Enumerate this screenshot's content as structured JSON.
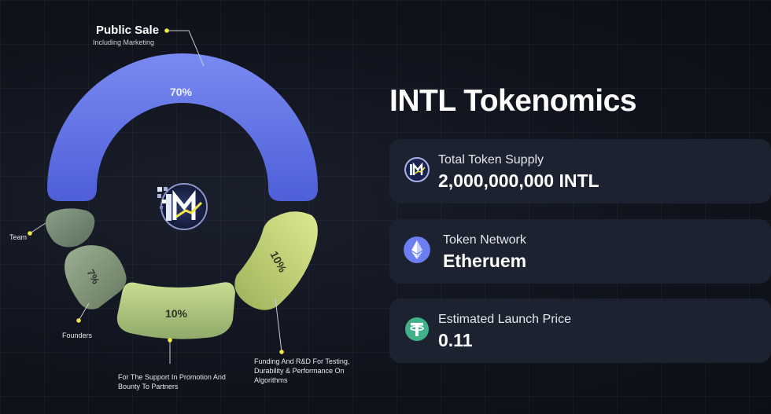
{
  "chart_data": {
    "type": "donut",
    "title": "",
    "segments": [
      {
        "name": "Public Sale",
        "subtitle": "Including Marketing",
        "value": 70,
        "value_label": "70%",
        "color": "#5a6ce6"
      },
      {
        "name": "Funding And R&D For Testing, Durability & Performance  On Algorithms",
        "value": 10,
        "value_label": "10%",
        "color": "#c4d86a"
      },
      {
        "name": "For The Support In Promotion And Bounty To Partners",
        "value": 10,
        "value_label": "10%",
        "color": "#a8c480"
      },
      {
        "name": "Founders",
        "value": 7,
        "value_label": "7%",
        "color": "#7e9478"
      },
      {
        "name": "Team",
        "value": 3,
        "value_label": "",
        "color": "#6f8672"
      }
    ]
  },
  "labels": {
    "public_sale": "Public Sale",
    "public_sale_sub": "Including Marketing",
    "team": "Team",
    "founders": "Founders",
    "support": "For The Support In Promotion And Bounty To Partners",
    "funding": "Funding And R&D For Testing, Durability & Performance  On Algorithms"
  },
  "panel": {
    "title": "INTL Tokenomics",
    "cards": [
      {
        "label": "Total Token Supply",
        "value": "2,000,000,000 INTL",
        "icon": "intl-logo-icon"
      },
      {
        "label": "Token Network",
        "value": "Etheruem",
        "icon": "ethereum-icon"
      },
      {
        "label": "Estimated Launch Price",
        "value": "0.11",
        "icon": "tether-icon"
      }
    ]
  },
  "colors": {
    "background": "#10131c",
    "card": "#1c2230",
    "leader_dot": "#f2e64a"
  }
}
